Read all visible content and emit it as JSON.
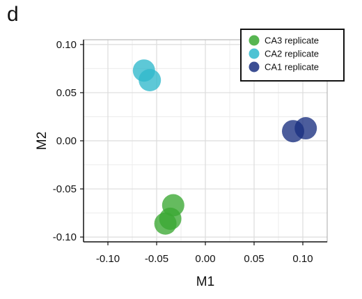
{
  "panel_label": "d",
  "chart_data": {
    "type": "scatter",
    "title": "",
    "xlabel": "M1",
    "ylabel": "M2",
    "xlim": [
      -0.125,
      0.125
    ],
    "ylim": [
      -0.105,
      0.105
    ],
    "xticks": [
      -0.1,
      -0.05,
      0.0,
      0.05,
      0.1
    ],
    "yticks": [
      -0.1,
      -0.05,
      0.0,
      0.05,
      0.1
    ],
    "xtick_labels": [
      "-0.10",
      "-0.05",
      "0.00",
      "0.05",
      "0.10"
    ],
    "ytick_labels": [
      "-0.10",
      "-0.05",
      "0.00",
      "0.05",
      "0.10"
    ],
    "grid": true,
    "legend_position": "top-right",
    "series": [
      {
        "name": "CA3 replicate",
        "color": "#3aa832",
        "points": [
          {
            "x": -0.033,
            "y": -0.067
          },
          {
            "x": -0.036,
            "y": -0.081
          },
          {
            "x": -0.041,
            "y": -0.086
          }
        ]
      },
      {
        "name": "CA2 replicate",
        "color": "#2fb9cc",
        "points": [
          {
            "x": -0.063,
            "y": 0.073
          },
          {
            "x": -0.057,
            "y": 0.063
          }
        ]
      },
      {
        "name": "CA1 replicate",
        "color": "#1a2f80",
        "points": [
          {
            "x": 0.103,
            "y": 0.013
          },
          {
            "x": 0.09,
            "y": 0.01
          }
        ]
      }
    ]
  }
}
